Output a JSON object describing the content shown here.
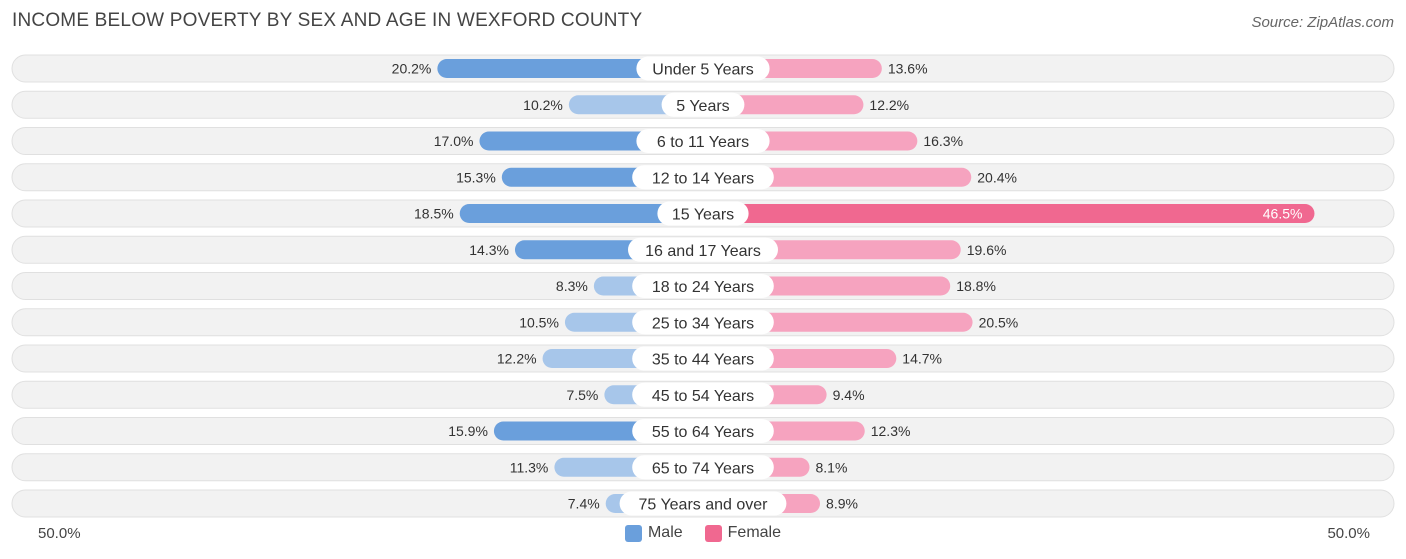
{
  "title": "INCOME BELOW POVERTY BY SEX AND AGE IN WEXFORD COUNTY",
  "source": "Source: ZipAtlas.com",
  "axis": {
    "left_label": "50.0%",
    "right_label": "50.0%"
  },
  "legend": [
    {
      "label": "Male",
      "color": "#6a9fdc"
    },
    {
      "label": "Female",
      "color": "#f06890"
    }
  ],
  "colors": {
    "male_strong": "#6a9fdc",
    "male_light": "#a7c6ea",
    "female_strong": "#f06890",
    "female_light": "#f6a3bf",
    "row_bg": "#f2f2f2",
    "row_border": "#e0e0e0"
  },
  "chart_data": {
    "type": "bar",
    "orientation": "horizontal-diverging",
    "title": "INCOME BELOW POVERTY BY SEX AND AGE IN WEXFORD COUNTY",
    "xlim": [
      -50,
      50
    ],
    "categories": [
      "Under 5 Years",
      "5 Years",
      "6 to 11 Years",
      "12 to 14 Years",
      "15 Years",
      "16 and 17 Years",
      "18 to 24 Years",
      "25 to 34 Years",
      "35 to 44 Years",
      "45 to 54 Years",
      "55 to 64 Years",
      "65 to 74 Years",
      "75 Years and over"
    ],
    "series": [
      {
        "name": "Male",
        "values": [
          20.2,
          10.2,
          17.0,
          15.3,
          18.5,
          14.3,
          8.3,
          10.5,
          12.2,
          7.5,
          15.9,
          11.3,
          7.4
        ],
        "labels": [
          "20.2%",
          "10.2%",
          "17.0%",
          "15.3%",
          "18.5%",
          "14.3%",
          "8.3%",
          "10.5%",
          "12.2%",
          "7.5%",
          "15.9%",
          "11.3%",
          "7.4%"
        ]
      },
      {
        "name": "Female",
        "values": [
          13.6,
          12.2,
          16.3,
          20.4,
          46.5,
          19.6,
          18.8,
          20.5,
          14.7,
          9.4,
          12.3,
          8.1,
          8.9
        ],
        "labels": [
          "13.6%",
          "12.2%",
          "16.3%",
          "20.4%",
          "46.5%",
          "19.6%",
          "18.8%",
          "20.5%",
          "14.7%",
          "9.4%",
          "12.3%",
          "8.1%",
          "8.9%"
        ]
      }
    ],
    "legend_position": "bottom-center",
    "grid": false
  }
}
